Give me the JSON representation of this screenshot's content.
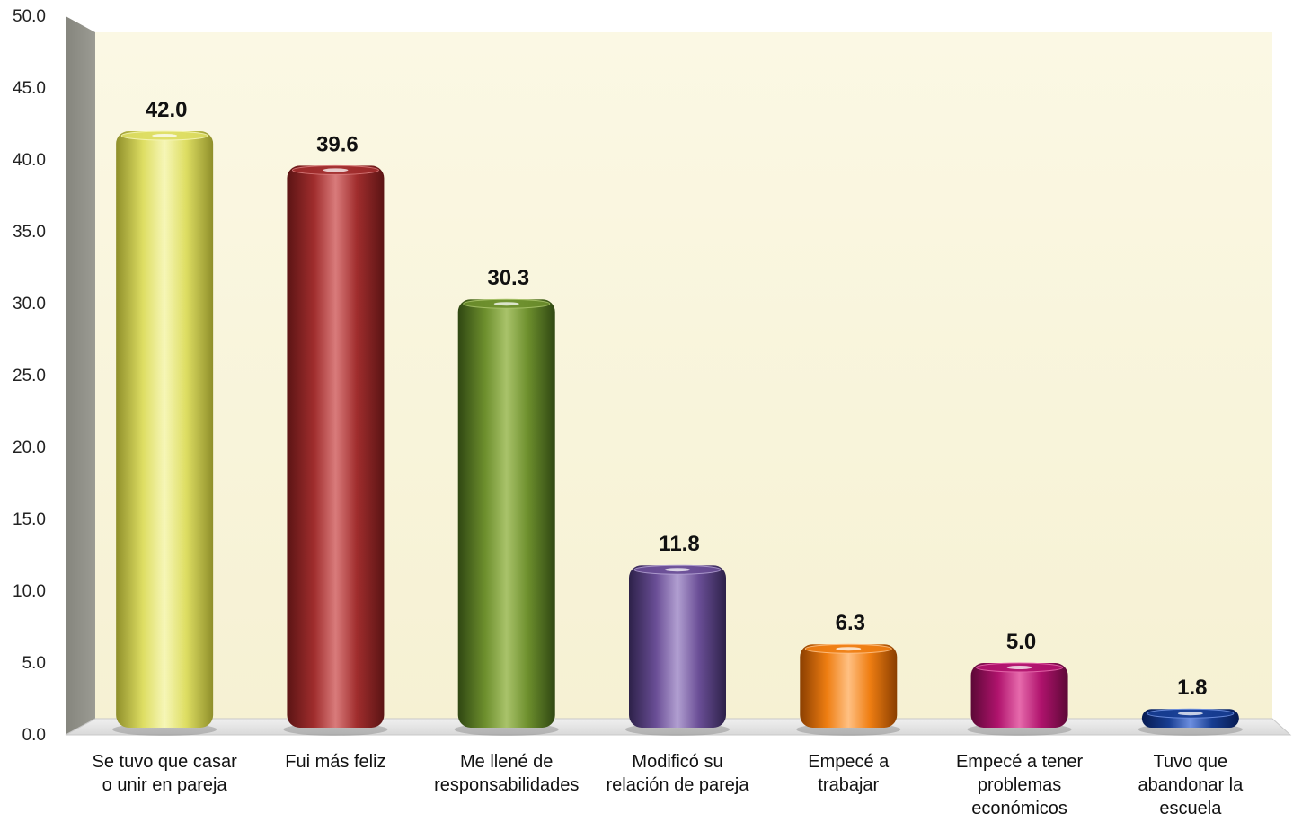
{
  "chart_data": {
    "type": "bar",
    "categories": [
      [
        "Se tuvo que casar",
        "o unir en pareja"
      ],
      [
        "Fui más feliz"
      ],
      [
        "Me llené de",
        "responsabilidades"
      ],
      [
        "Modificó su",
        "relación de pareja"
      ],
      [
        "Empecé a",
        "trabajar"
      ],
      [
        "Empecé a tener",
        "problemas",
        "económicos"
      ],
      [
        "Tuvo que",
        "abandonar la",
        "escuela"
      ]
    ],
    "values": [
      42.0,
      39.6,
      30.3,
      11.8,
      6.3,
      5.0,
      1.8
    ],
    "value_labels": [
      "42.0",
      "39.6",
      "30.3",
      "11.8",
      "6.3",
      "5.0",
      "1.8"
    ],
    "ylim": [
      0,
      50
    ],
    "yticks": [
      0,
      5,
      10,
      15,
      20,
      25,
      30,
      35,
      40,
      45,
      50
    ],
    "ytick_labels": [
      "0.0",
      "5.0",
      "10.0",
      "15.0",
      "20.0",
      "25.0",
      "30.0",
      "35.0",
      "40.0",
      "45.0",
      "50.0"
    ],
    "title": "",
    "xlabel": "",
    "ylabel": "",
    "grid": false,
    "legend": "none",
    "bar_colors": [
      {
        "dark": "#8f8f2a",
        "mid": "#dede63",
        "light": "#f6f6b7"
      },
      {
        "dark": "#5b1414",
        "mid": "#a02d2d",
        "light": "#d97b7b"
      },
      {
        "dark": "#2f4712",
        "mid": "#6d8f2d",
        "light": "#a9c36a"
      },
      {
        "dark": "#2d2149",
        "mid": "#6a4e96",
        "light": "#b19fd1"
      },
      {
        "dark": "#8a3e00",
        "mid": "#ef7e12",
        "light": "#ffc083"
      },
      {
        "dark": "#5c0836",
        "mid": "#b0136d",
        "light": "#e66aac"
      },
      {
        "dark": "#071b52",
        "mid": "#173d92",
        "light": "#6d8fe0"
      }
    ],
    "plot_background": "#fbf8e4",
    "side_wall_color": "#9b9b93",
    "floor_color": "#d9d9d9"
  }
}
